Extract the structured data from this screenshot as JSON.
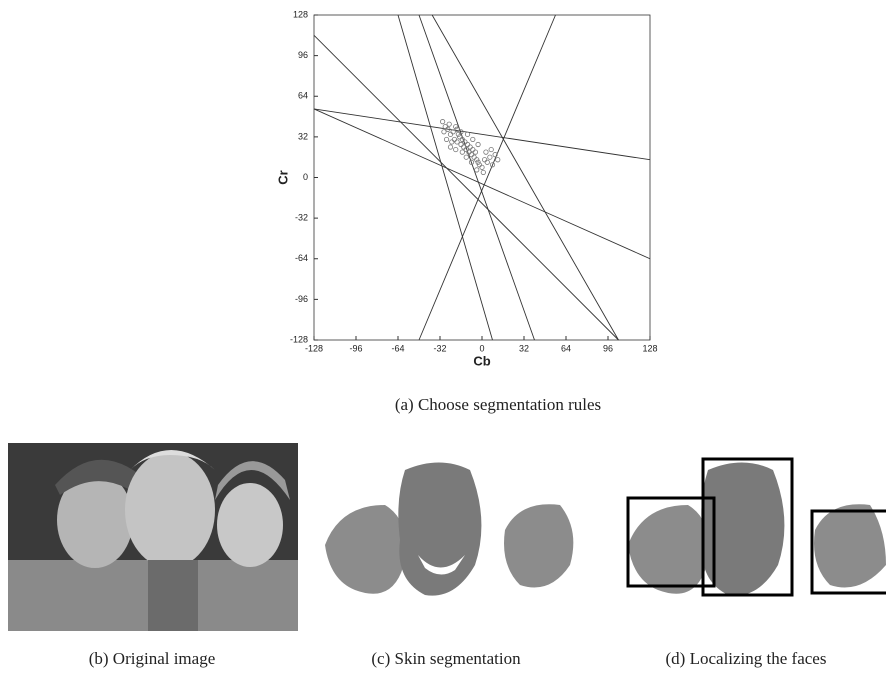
{
  "chart_data": {
    "type": "scatter",
    "xlabel": "Cb",
    "ylabel": "Cr",
    "xlim": [
      -128,
      128
    ],
    "ylim": [
      -128,
      128
    ],
    "xticks": [
      -128,
      -96,
      -64,
      -32,
      0,
      32,
      64,
      96,
      128
    ],
    "yticks": [
      -128,
      -96,
      -64,
      -32,
      0,
      32,
      64,
      96,
      128
    ],
    "color": "#777777",
    "x": [
      -30,
      -28,
      -26,
      -25,
      -24,
      -22,
      -21,
      -20,
      -19,
      -18,
      -17,
      -16,
      -15,
      -14,
      -13,
      -12,
      -11,
      -10,
      -9,
      -8,
      -7,
      -6,
      -5,
      -4,
      -3,
      -2,
      0,
      2,
      4,
      6,
      8,
      10,
      -27,
      -23,
      -19,
      -15,
      -11,
      -7,
      -3,
      1,
      -29,
      -24,
      -20,
      -16,
      -12,
      -8,
      -4,
      3,
      7,
      12
    ],
    "y": [
      44,
      40,
      38,
      42,
      34,
      36,
      30,
      40,
      28,
      34,
      32,
      26,
      30,
      24,
      28,
      22,
      26,
      20,
      24,
      18,
      22,
      16,
      20,
      14,
      12,
      10,
      8,
      14,
      12,
      16,
      10,
      18,
      30,
      28,
      38,
      20,
      34,
      30,
      26,
      4,
      36,
      24,
      22,
      36,
      16,
      12,
      6,
      20,
      22,
      14
    ],
    "lines": [
      {
        "x": [
          -128,
          104
        ],
        "y": [
          112,
          -128
        ]
      },
      {
        "x": [
          -128,
          128
        ],
        "y": [
          54,
          14
        ]
      },
      {
        "x": [
          -128,
          128
        ],
        "y": [
          54,
          -64
        ]
      },
      {
        "x": [
          -64,
          8
        ],
        "y": [
          128,
          -128
        ]
      },
      {
        "x": [
          -48,
          40
        ],
        "y": [
          128,
          -128
        ]
      },
      {
        "x": [
          -38,
          104
        ],
        "y": [
          128,
          -128
        ]
      },
      {
        "x": [
          -48,
          56
        ],
        "y": [
          -128,
          128
        ]
      }
    ]
  },
  "captions": [
    "(a) Choose segmentation rules",
    "(b) Original image",
    "(c) Skin segmentation",
    "(d) Localizing the faces"
  ]
}
